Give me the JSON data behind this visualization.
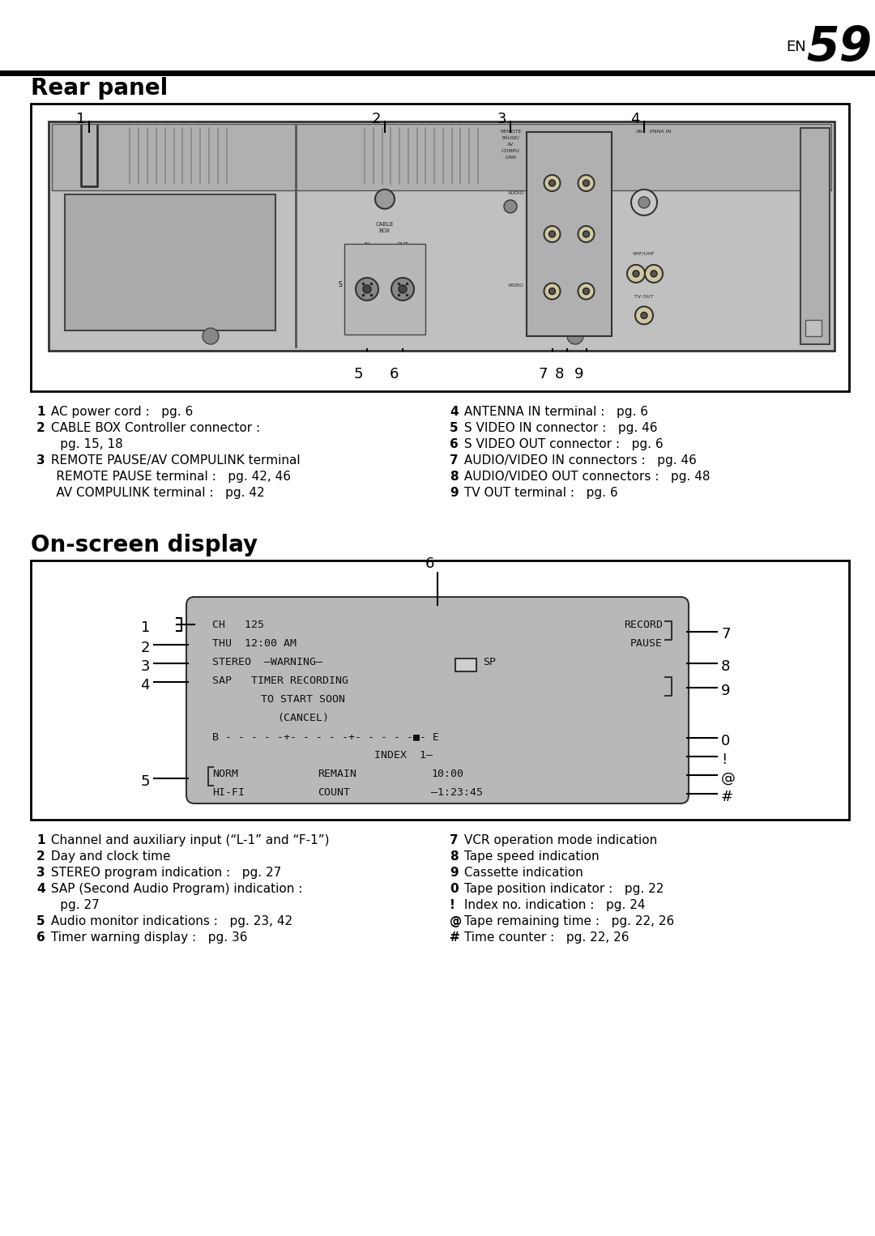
{
  "page_title_en": "EN",
  "page_title_num": "59",
  "section1_title": "Rear panel",
  "section2_title": "On-screen display",
  "bg_color": "#ffffff",
  "rear_panel_labels_left": [
    [
      "1",
      " AC power cord :   pg. 6"
    ],
    [
      "2",
      " CABLE BOX Controller connector :"
    ],
    [
      "",
      "      pg. 15, 18"
    ],
    [
      "3",
      " REMOTE PAUSE/AV COMPULINK terminal"
    ],
    [
      "",
      "     REMOTE PAUSE terminal :   pg. 42, 46"
    ],
    [
      "",
      "     AV COMPULINK terminal :   pg. 42"
    ]
  ],
  "rear_panel_labels_right": [
    [
      "4",
      " ANTENNA IN terminal :   pg. 6"
    ],
    [
      "5",
      " S VIDEO IN connector :   pg. 46"
    ],
    [
      "6",
      " S VIDEO OUT connector :   pg. 6"
    ],
    [
      "7",
      " AUDIO/VIDEO IN connectors :   pg. 46"
    ],
    [
      "8",
      " AUDIO/VIDEO OUT connectors :   pg. 48"
    ],
    [
      "9",
      " TV OUT terminal :   pg. 6"
    ]
  ],
  "osd_labels_left": [
    [
      "1",
      " Channel and auxiliary input (“L-1” and “F-1”)"
    ],
    [
      "2",
      " Day and clock time"
    ],
    [
      "3",
      " STEREO program indication :   pg. 27"
    ],
    [
      "4",
      " SAP (Second Audio Program) indication :"
    ],
    [
      "",
      "      pg. 27"
    ],
    [
      "5",
      " Audio monitor indications :   pg. 23, 42"
    ],
    [
      "6",
      " Timer warning display :   pg. 36"
    ]
  ],
  "osd_labels_right": [
    [
      "7",
      " VCR operation mode indication"
    ],
    [
      "8",
      " Tape speed indication"
    ],
    [
      "9",
      " Cassette indication"
    ],
    [
      "0",
      " Tape position indicator :   pg. 22"
    ],
    [
      "!",
      " Index no. indication :   pg. 24"
    ],
    [
      "@",
      " Tape remaining time :   pg. 22, 26"
    ],
    [
      "#",
      " Time counter :   pg. 22, 26"
    ]
  ]
}
